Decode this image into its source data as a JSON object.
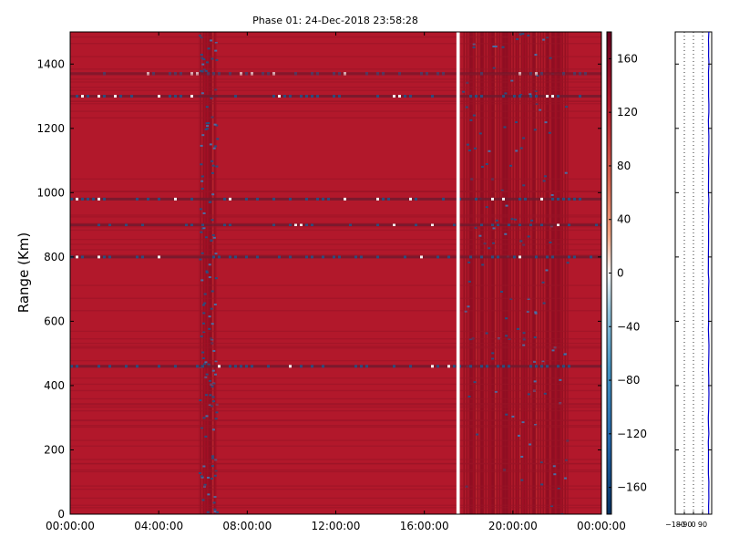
{
  "chart_data": [
    {
      "type": "heatmap",
      "title": "Phase 01: 24-Dec-2018 23:58:28",
      "xlabel": "",
      "ylabel": "Range (Km)",
      "x_ticks": [
        "00:00:00",
        "04:00:00",
        "08:00:00",
        "12:00:00",
        "16:00:00",
        "20:00:00",
        "00:00:00"
      ],
      "x_tick_hours": [
        0,
        4,
        8,
        12,
        16,
        20,
        24
      ],
      "xlim_hours": [
        0,
        24
      ],
      "y_ticks": [
        0,
        200,
        400,
        600,
        800,
        1000,
        1200,
        1400
      ],
      "ylim": [
        0,
        1500
      ],
      "colormap": "RdBu_r",
      "background_value": 150,
      "colorbar": {
        "ticks": [
          160,
          120,
          80,
          40,
          0,
          -40,
          -80,
          -120,
          -160
        ],
        "range": [
          -180,
          180
        ]
      },
      "noisy_time_bands_hours": [
        [
          5.8,
          6.6
        ],
        [
          17.7,
          22.5
        ]
      ],
      "gap_hours": [
        [
          17.45,
          17.6
        ]
      ],
      "strong_range_lines_km": [
        1370,
        1300,
        980,
        460,
        800,
        900
      ]
    },
    {
      "type": "line",
      "x_ticks": [
        -180,
        -90,
        0,
        90
      ],
      "xlim": [
        -180,
        180
      ],
      "ylim": [
        0,
        1500
      ],
      "line_color": "#0000cc",
      "approx_value": 150
    }
  ]
}
